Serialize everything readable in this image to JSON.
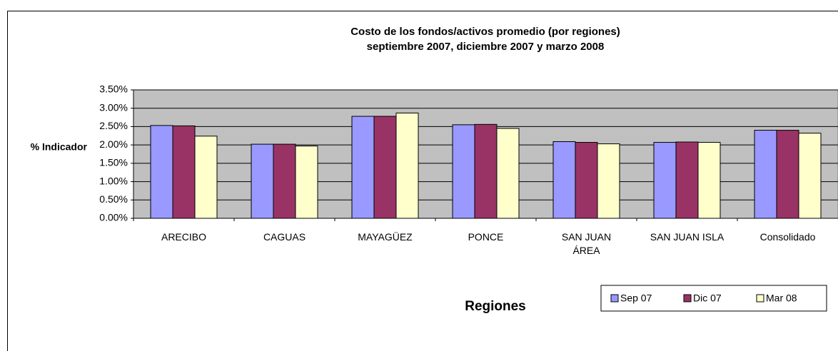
{
  "chart_data": {
    "type": "bar",
    "title": "Costo de los fondos/activos promedio (por regiones)",
    "subtitle": "septiembre 2007, diciembre 2007 y marzo 2008",
    "y_label": "% Indicador",
    "x_label": "Regiones",
    "categories": [
      "ARECIBO",
      "CAGUAS",
      "MAYAGÜEZ",
      "PONCE",
      "SAN JUAN ÁREA",
      "SAN JUAN ISLA",
      "Consolidado"
    ],
    "series": [
      {
        "name": "Sep 07",
        "color": "#9999ff",
        "values": [
          2.53,
          2.02,
          2.78,
          2.55,
          2.09,
          2.07,
          2.4
        ]
      },
      {
        "name": "Dic 07",
        "color": "#993366",
        "values": [
          2.52,
          2.02,
          2.78,
          2.56,
          2.07,
          2.08,
          2.4
        ]
      },
      {
        "name": "Mar 08",
        "color": "#ffffcc",
        "values": [
          2.24,
          1.97,
          2.87,
          2.45,
          2.03,
          2.07,
          2.32
        ]
      }
    ],
    "ylim": [
      0,
      3.5
    ],
    "yticks": [
      {
        "value": 0,
        "label": "0.00%"
      },
      {
        "value": 0.5,
        "label": "0.50%"
      },
      {
        "value": 1,
        "label": "1.00%"
      },
      {
        "value": 1.5,
        "label": "1.50%"
      },
      {
        "value": 2,
        "label": "2.00%"
      },
      {
        "value": 2.5,
        "label": "2.50%"
      },
      {
        "value": 3,
        "label": "3.00%"
      },
      {
        "value": 3.5,
        "label": "3.50%"
      }
    ],
    "grid": true,
    "legend": "bottom-right"
  }
}
